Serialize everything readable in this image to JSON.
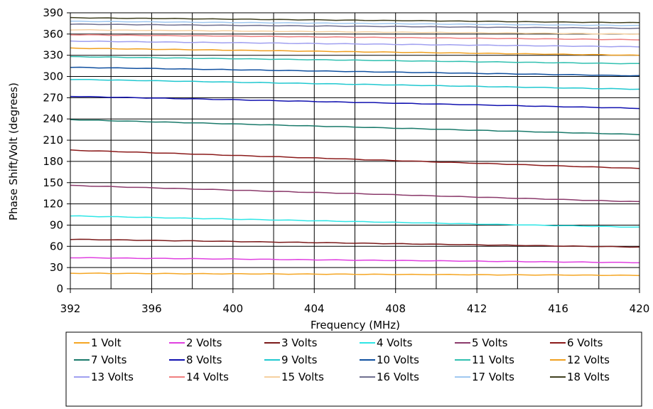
{
  "chart_data": {
    "type": "line",
    "xlabel": "Frequency (MHz)",
    "ylabel": "Phase Shift/Volt (degrees)",
    "xlim": [
      392,
      420
    ],
    "ylim": [
      0,
      390
    ],
    "x_ticks": [
      392,
      396,
      400,
      404,
      408,
      412,
      416,
      420
    ],
    "y_ticks": [
      0,
      30,
      60,
      90,
      120,
      150,
      180,
      210,
      240,
      270,
      300,
      330,
      360,
      390
    ],
    "x_grid_step": 2,
    "grid": true,
    "legend_position": "bottom",
    "x": [
      392,
      420
    ],
    "series": [
      {
        "name": "1 Volt",
        "color": "#f5a623",
        "values": [
          22,
          19
        ]
      },
      {
        "name": "2 Volts",
        "color": "#e040e0",
        "values": [
          44,
          37
        ]
      },
      {
        "name": "3 Volts",
        "color": "#7b1a1a",
        "values": [
          70,
          59
        ]
      },
      {
        "name": "4 Volts",
        "color": "#2ee6e6",
        "values": [
          103,
          87
        ]
      },
      {
        "name": "5 Volts",
        "color": "#8b3a6b",
        "values": [
          146,
          123
        ]
      },
      {
        "name": "6 Volts",
        "color": "#8b1a1a",
        "values": [
          196,
          170
        ]
      },
      {
        "name": "7 Volts",
        "color": "#1a7a6b",
        "values": [
          239,
          218
        ]
      },
      {
        "name": "8 Volts",
        "color": "#1010b0",
        "values": [
          272,
          255
        ]
      },
      {
        "name": "9 Volts",
        "color": "#20c8d0",
        "values": [
          296,
          282
        ]
      },
      {
        "name": "10 Volts",
        "color": "#1050a0",
        "values": [
          313,
          301
        ]
      },
      {
        "name": "11 Volts",
        "color": "#30c0b0",
        "values": [
          328,
          318
        ]
      },
      {
        "name": "12 Volts",
        "color": "#f0a020",
        "values": [
          340,
          330
        ]
      },
      {
        "name": "13 Volts",
        "color": "#a0a0f0",
        "values": [
          350,
          342
        ]
      },
      {
        "name": "14 Volts",
        "color": "#f08080",
        "values": [
          359,
          352
        ]
      },
      {
        "name": "15 Volts",
        "color": "#f5d0a0",
        "values": [
          366,
          360
        ]
      },
      {
        "name": "16 Volts",
        "color": "#707090",
        "values": [
          374,
          368
        ]
      },
      {
        "name": "17 Volts",
        "color": "#a0c8f0",
        "values": [
          378,
          372
        ]
      },
      {
        "name": "18 Volts",
        "color": "#404020",
        "values": [
          383,
          376
        ]
      }
    ]
  }
}
